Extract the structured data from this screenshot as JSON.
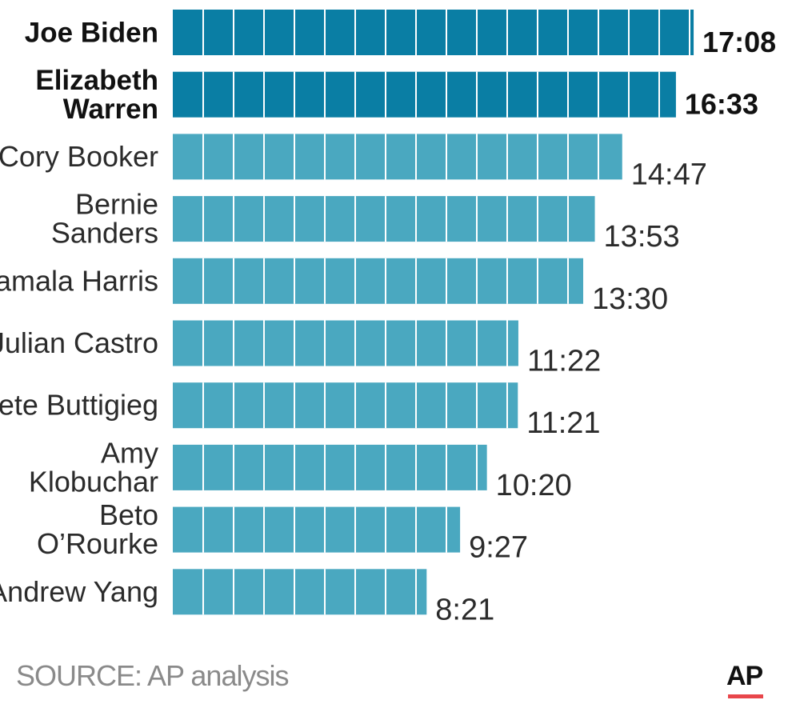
{
  "chart_data": {
    "type": "bar",
    "orientation": "horizontal",
    "title": "",
    "xlabel": "",
    "ylabel": "",
    "categories": [
      [
        "Joe Biden"
      ],
      [
        "Elizabeth",
        "Warren"
      ],
      [
        "Cory Booker"
      ],
      [
        "Bernie",
        "Sanders"
      ],
      [
        "Kamala Harris"
      ],
      [
        "Julian Castro"
      ],
      [
        "Pete Buttigieg"
      ],
      [
        "Amy",
        "Klobuchar"
      ],
      [
        "Beto",
        "O’Rourke"
      ],
      [
        "Andrew Yang"
      ]
    ],
    "value_labels": [
      "17:08",
      "16:33",
      "14:47",
      "13:53",
      "13:30",
      "11:22",
      "11:21",
      "10:20",
      "9:27",
      "8:21"
    ],
    "values_minutes": [
      17.133,
      16.55,
      14.783,
      13.883,
      13.5,
      11.367,
      11.35,
      10.333,
      9.45,
      8.35
    ],
    "highlighted": [
      true,
      true,
      false,
      false,
      false,
      false,
      false,
      false,
      false,
      false
    ],
    "segment_unit_minutes": 1,
    "colors": {
      "highlight": "#0a7ea4",
      "normal": "#4aa8c0",
      "divider": "#ffffff"
    }
  },
  "footer": {
    "source": "SOURCE: AP analysis",
    "logo": "AP"
  }
}
